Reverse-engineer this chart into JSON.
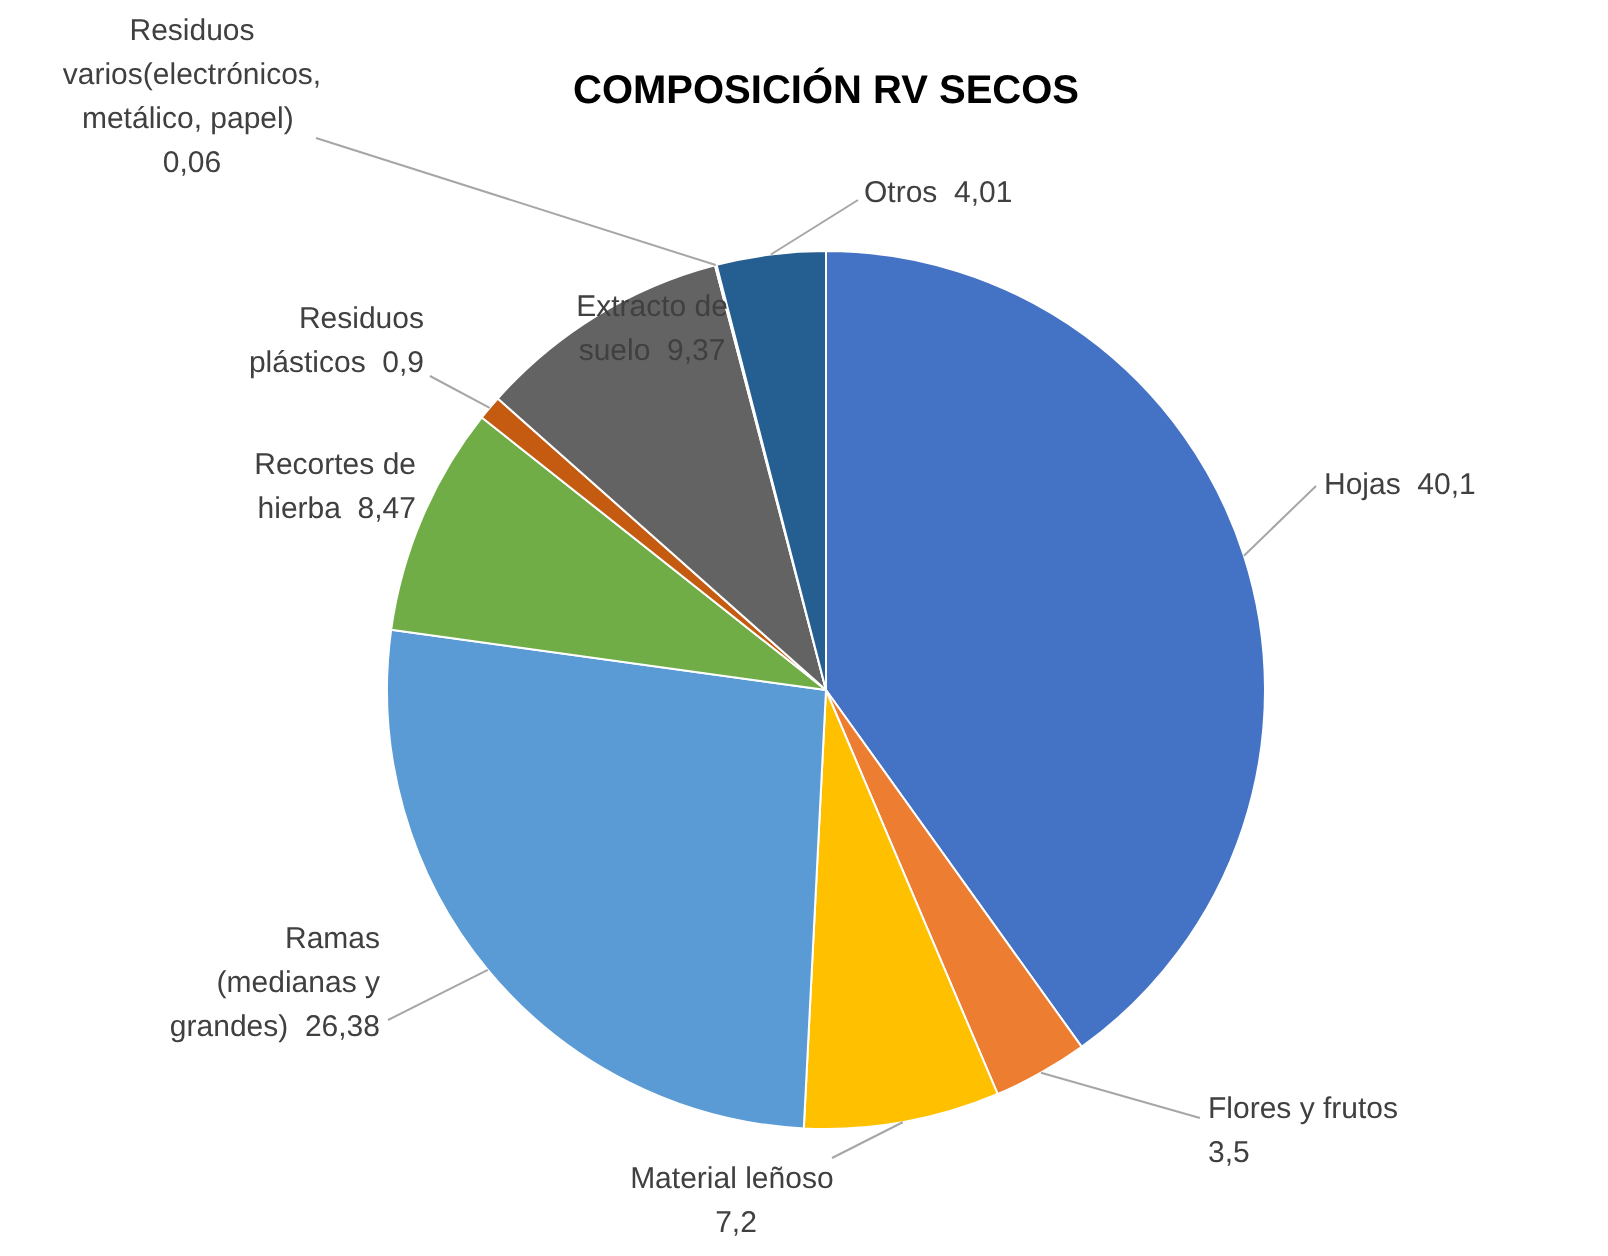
{
  "chart_data": {
    "type": "pie",
    "title": "COMPOSICIÓN RV SECOS",
    "categories": [
      "Hojas",
      "Flores y frutos",
      "Material leñoso",
      "Ramas (medianas y grandes)",
      "Recortes de hierba",
      "Residuos plásticos",
      "Extracto de suelo",
      "Residuos varios(electrónicos, metálico, papel)",
      "Otros"
    ],
    "values": [
      40.1,
      3.5,
      7.2,
      26.38,
      8.47,
      0.9,
      9.37,
      0.06,
      4.01
    ],
    "colors": [
      "#4472c4",
      "#ed7d31",
      "#ffc000",
      "#5b9bd5",
      "#70ad47",
      "#c55a11",
      "#636363",
      "#997300",
      "#255e91"
    ],
    "value_labels": [
      "40,1",
      "3,5",
      "7,2",
      "26,38",
      "8,47",
      "0,9",
      "9,37",
      "0,06",
      "4,01"
    ],
    "legend": false
  }
}
